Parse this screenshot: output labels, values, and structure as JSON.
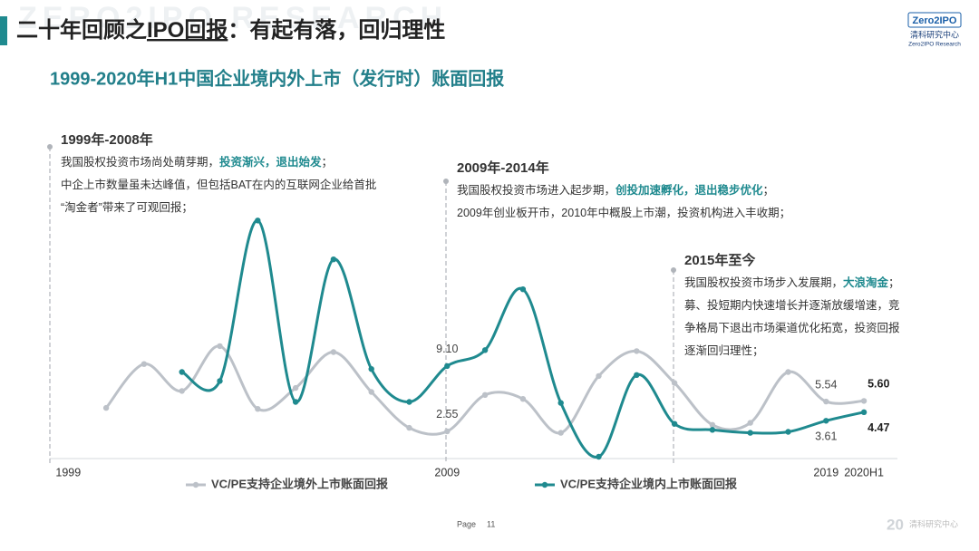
{
  "slide_title": [
    "二十年回顾之",
    {
      "text": "IPO回报",
      "underline": true
    },
    "：有起有落，回归理性"
  ],
  "logo": {
    "brand": "Zero2IPO",
    "name": "清科研究中心",
    "sub": "Zero2IPO Research"
  },
  "footer": {
    "page_label": "Page",
    "page_number": "11",
    "mark": "清科研究中心"
  },
  "chart_data": {
    "type": "line",
    "title": "1999-2020年H1中国企业境内外上市（发行时）账面回报",
    "categories": [
      "1999",
      null,
      null,
      null,
      null,
      null,
      null,
      null,
      null,
      null,
      "2009",
      null,
      null,
      null,
      null,
      null,
      null,
      null,
      null,
      null,
      "2019",
      "2020H1"
    ],
    "ylim": [
      0,
      25
    ],
    "series": [
      {
        "name": "VC/PE支持企业境外上市账面回报",
        "color": "#bcc1c8",
        "values": [
          null,
          4.9,
          9.3,
          6.6,
          11.1,
          4.8,
          6.9,
          10.5,
          6.5,
          2.9,
          2.55,
          6.2,
          5.8,
          2.4,
          8.1,
          10.6,
          7.4,
          3.2,
          3.4,
          8.5,
          5.54,
          5.6
        ],
        "value_labels": [
          null,
          null,
          null,
          null,
          null,
          null,
          null,
          null,
          null,
          null,
          "2.55",
          null,
          null,
          null,
          null,
          null,
          null,
          null,
          null,
          null,
          "5.54",
          "5.60"
        ]
      },
      {
        "name": "VC/PE支持企业境内上市账面回报",
        "color": "#1f8a8f",
        "values": [
          null,
          null,
          null,
          8.5,
          7.6,
          23.7,
          5.5,
          19.8,
          8.8,
          5.5,
          9.1,
          10.7,
          16.8,
          5.4,
          0.0,
          8.2,
          3.3,
          2.7,
          2.4,
          2.5,
          3.61,
          4.47
        ],
        "value_labels": [
          null,
          null,
          null,
          null,
          null,
          null,
          null,
          null,
          null,
          null,
          "9.10",
          null,
          null,
          null,
          null,
          null,
          null,
          null,
          null,
          null,
          "3.61",
          "4.47"
        ]
      }
    ],
    "annotations": [
      {
        "title": "1999年-2008年",
        "at": 0,
        "lines": [
          [
            "我国股权投资市场尚处萌芽期，",
            {
              "text": "投资渐兴，退出始发",
              "bold": true
            },
            "；"
          ],
          [
            "中企上市数量虽未达峰值，但包括BAT在内的互联网企业给首批"
          ],
          [
            "“淘金者”带来了可观回报；"
          ]
        ]
      },
      {
        "title": "2009年-2014年",
        "at": 10,
        "lines": [
          [
            "我国股权投资市场进入起步期，",
            {
              "text": "创投加速孵化，退出稳步优化",
              "bold": true
            },
            "；"
          ],
          [
            "2009年创业板开市，2010年中概股上市潮，投资机构进入丰收期；"
          ]
        ]
      },
      {
        "title": "2015年至今",
        "at": 16,
        "lines": [
          [
            "我国股权投资市场步入发展期，",
            {
              "text": "大浪淘金",
              "bold": true
            },
            "；"
          ],
          [
            "募、投短期内快速增长并逐渐放缓增速，竞"
          ],
          [
            "争格局下退出市场渠道优化拓宽，投资回报"
          ],
          [
            "逐渐回归理性；"
          ]
        ]
      }
    ]
  }
}
